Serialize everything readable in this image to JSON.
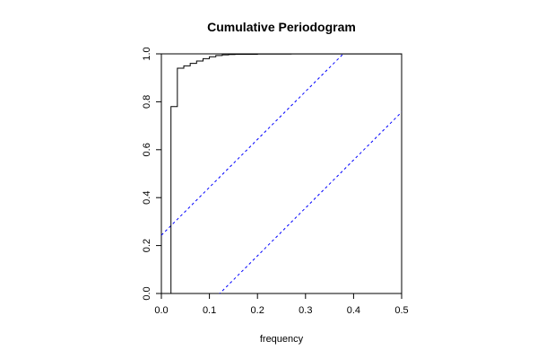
{
  "chart_data": {
    "type": "line",
    "title": "Cumulative Periodogram",
    "xlabel": "frequency",
    "ylabel": "",
    "xlim": [
      0,
      0.5
    ],
    "ylim": [
      0,
      1
    ],
    "x_ticks": [
      "0.0",
      "0.1",
      "0.2",
      "0.3",
      "0.4",
      "0.5"
    ],
    "y_ticks": [
      "0.0",
      "0.2",
      "0.4",
      "0.6",
      "0.8",
      "1.0"
    ],
    "grid": false,
    "series": [
      {
        "style": "step",
        "color": "#000000",
        "x": [
          0.02,
          0.0333,
          0.0467,
          0.06,
          0.0733,
          0.0867,
          0.1,
          0.1133,
          0.1267,
          0.14,
          0.1533,
          0.2,
          0.27,
          0.5
        ],
        "y": [
          0.78,
          0.94,
          0.95,
          0.96,
          0.97,
          0.98,
          0.988,
          0.993,
          0.996,
          0.997,
          0.998,
          0.999,
          0.9995,
          1.0
        ]
      }
    ],
    "confidence_bands": [
      {
        "color": "#0000ff",
        "dash": true,
        "x": [
          0,
          0.5
        ],
        "y": [
          0.243,
          1.243
        ]
      },
      {
        "color": "#0000ff",
        "dash": true,
        "x": [
          0,
          0.5
        ],
        "y": [
          -0.243,
          0.757
        ]
      }
    ]
  }
}
